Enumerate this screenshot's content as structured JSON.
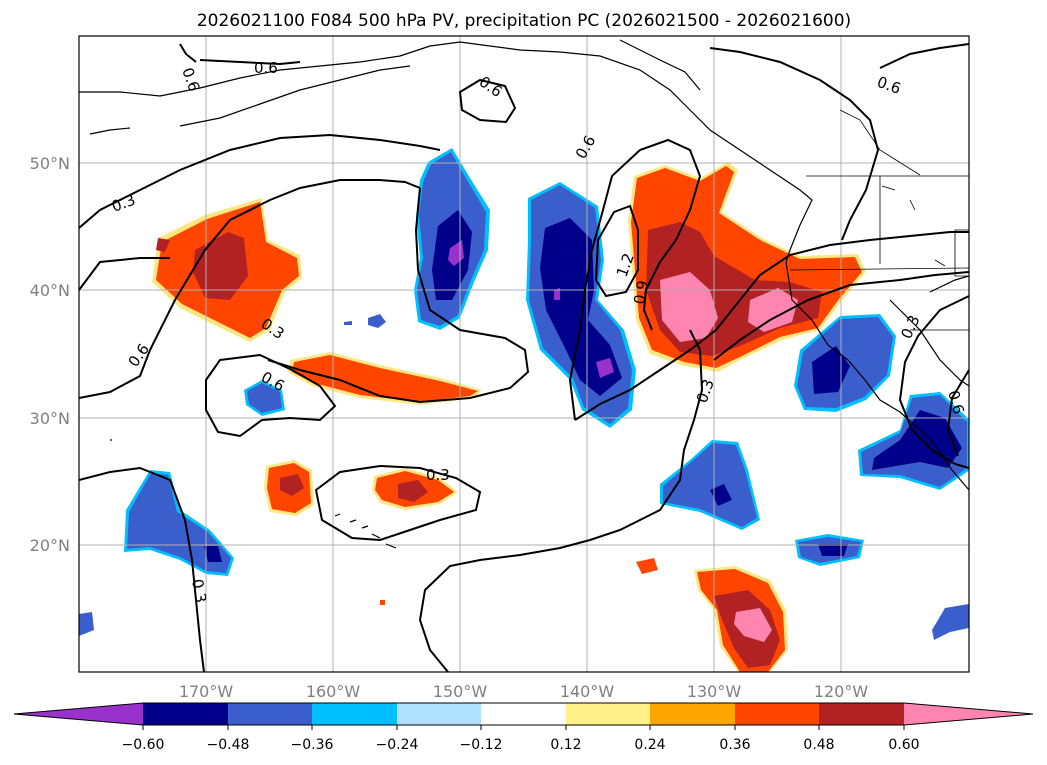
{
  "title": "2026021100 F084 500 hPa PV, precipitation PC (2026021500 - 2026021600)",
  "map": {
    "longitude_ticks": [
      "170°W",
      "160°W",
      "150°W",
      "140°W",
      "130°W",
      "120°W"
    ],
    "latitude_ticks": [
      "50°N",
      "40°N",
      "30°N",
      "20°N"
    ],
    "pv_contour_labels": [
      {
        "text": "0.6"
      },
      {
        "text": "0.6"
      },
      {
        "text": "0.6"
      },
      {
        "text": "0.6"
      },
      {
        "text": "0.3"
      },
      {
        "text": "0.3"
      },
      {
        "text": "0.6"
      },
      {
        "text": "0.6"
      },
      {
        "text": "0.6"
      },
      {
        "text": "1.2"
      },
      {
        "text": "0.9"
      },
      {
        "text": "0.3"
      },
      {
        "text": "0.3"
      },
      {
        "text": "0.3"
      },
      {
        "text": "0.6"
      },
      {
        "text": "0.3"
      }
    ]
  },
  "colorbar": {
    "colors": [
      "#9932cc",
      "#00008b",
      "#3a5fcd",
      "#00bfff",
      "#b0e2ff",
      "#ffffff",
      "#fff08a",
      "#ffa500",
      "#ff4500",
      "#b22222",
      "#ff85b0"
    ],
    "tick_labels": [
      "−0.60",
      "−0.48",
      "−0.36",
      "−0.24",
      "−0.12",
      "0.12",
      "0.24",
      "0.36",
      "0.48",
      "0.60"
    ]
  }
}
